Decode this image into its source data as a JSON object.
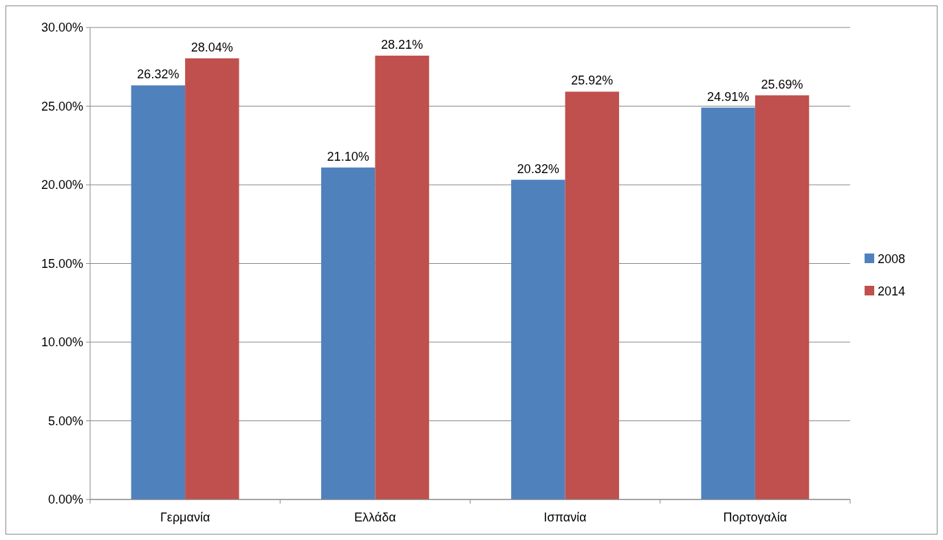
{
  "chart_data": {
    "type": "bar",
    "categories": [
      "Γερμανία",
      "Ελλάδα",
      "Ισπανία",
      "Πορτογαλία"
    ],
    "series": [
      {
        "name": "2008",
        "color": "#4f81bd",
        "values": [
          26.32,
          21.1,
          20.32,
          24.91
        ],
        "value_labels": [
          "26.32%",
          "21.10%",
          "20.32%",
          "24.91%"
        ]
      },
      {
        "name": "2014",
        "color": "#c0504d",
        "values": [
          28.04,
          28.21,
          25.92,
          25.69
        ],
        "value_labels": [
          "28.04%",
          "28.21%",
          "25.92%",
          "25.69%"
        ]
      }
    ],
    "ylim": [
      0,
      30
    ],
    "yticks": [
      {
        "value": 0,
        "label": "0.00%"
      },
      {
        "value": 5,
        "label": "5.00%"
      },
      {
        "value": 10,
        "label": "10.00%"
      },
      {
        "value": 15,
        "label": "15.00%"
      },
      {
        "value": 20,
        "label": "20.00%"
      },
      {
        "value": 25,
        "label": "25.00%"
      },
      {
        "value": 30,
        "label": "30.00%"
      }
    ],
    "grid": "y",
    "legend": "right"
  }
}
